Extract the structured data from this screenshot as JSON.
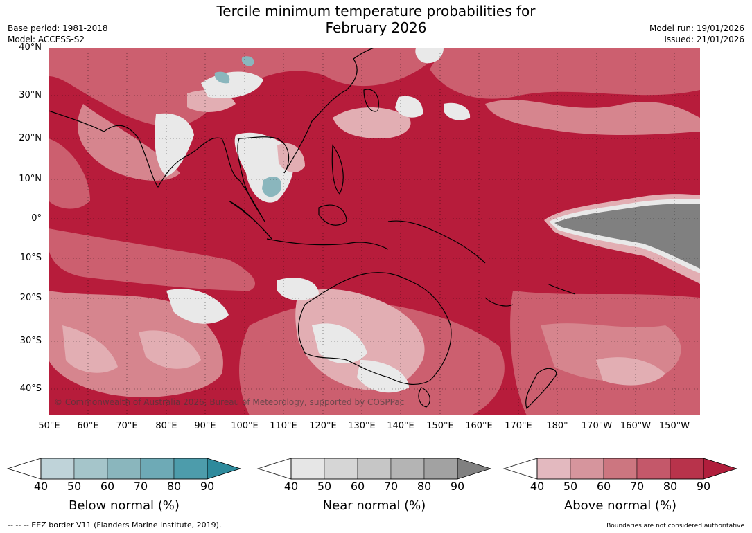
{
  "title_line1": "Tercile minimum temperature probabilities for",
  "title_line2": "February 2026",
  "meta": {
    "base_period": "Base period: 1981-2018",
    "model": "Model: ACCESS-S2",
    "model_run": "Model run: 19/01/2026",
    "issued": "Issued: 21/01/2026"
  },
  "lat_labels": [
    "40°N",
    "30°N",
    "20°N",
    "10°N",
    "0°",
    "10°S",
    "20°S",
    "30°S",
    "40°S"
  ],
  "lon_labels": [
    "50°E",
    "60°E",
    "70°E",
    "80°E",
    "90°E",
    "100°E",
    "110°E",
    "120°E",
    "130°E",
    "140°E",
    "150°E",
    "160°E",
    "170°E",
    "180°",
    "170°W",
    "160°W",
    "150°W"
  ],
  "copyright": "© Commonwealth of Australia 2026, Bureau of Meteorology, supported by COSPPac",
  "legends": [
    {
      "title": "Below normal (%)",
      "ticks": [
        "40",
        "50",
        "60",
        "70",
        "80",
        "90"
      ],
      "colors": [
        "#bfd3d9",
        "#a5c5ca",
        "#8ab6bd",
        "#6eaab6",
        "#4d9cab",
        "#2e8a9c"
      ]
    },
    {
      "title": "Near normal (%)",
      "ticks": [
        "40",
        "50",
        "60",
        "70",
        "80",
        "90"
      ],
      "colors": [
        "#e6e6e6",
        "#d6d6d6",
        "#c6c6c6",
        "#b4b4b4",
        "#a2a2a2",
        "#808080"
      ]
    },
    {
      "title": "Above normal (%)",
      "ticks": [
        "40",
        "50",
        "60",
        "70",
        "80",
        "90"
      ],
      "colors": [
        "#e3b9bf",
        "#d6959d",
        "#cc7680",
        "#c4586a",
        "#b8334b",
        "#b01e3c"
      ]
    }
  ],
  "footer_left": "--  --  -- EEZ border V11 (Flanders Marine Institute, 2019).",
  "footer_right": "Boundaries are not considered authoritative",
  "colors": {
    "above_90": "#b71c3b",
    "above_80": "#c0354f",
    "above_70": "#cc5f6f",
    "above_60": "#d6858e",
    "above_50": "#e2aeb3",
    "near_40": "#e9e9e9",
    "near_90": "#808080",
    "below_70": "#8ab6bd"
  }
}
